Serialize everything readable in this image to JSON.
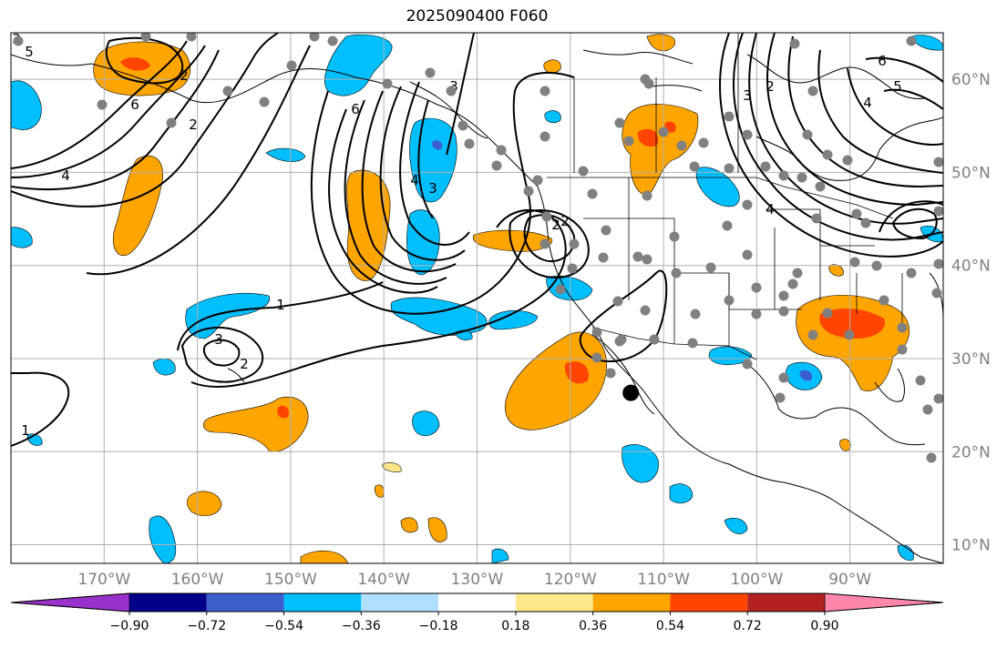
{
  "title": "2025090400 F060",
  "map": {
    "projection": "cylindrical",
    "lon_range": [
      -180,
      -80
    ],
    "lat_range": [
      8,
      65
    ],
    "gridlines": true,
    "coastlines": true,
    "borders": true,
    "lon_labels": [
      "170°W",
      "160°W",
      "150°W",
      "140°W",
      "130°W",
      "120°W",
      "110°W",
      "100°W",
      "90°W"
    ],
    "lat_labels": [
      "60°N",
      "50°N",
      "40°N",
      "30°N",
      "20°N",
      "10°N"
    ],
    "contour_labels": [
      "5",
      "4",
      "3",
      "2",
      "6",
      "2",
      "6",
      "4",
      "3",
      "3",
      "2",
      "1",
      "3",
      "2",
      "1",
      "6",
      "5",
      "4",
      "3",
      "2",
      "4",
      "2"
    ],
    "highlight_marker": {
      "lon": -114,
      "lat": 27,
      "color": "#000000"
    }
  },
  "colorbar": {
    "ticks": [
      "−0.90",
      "−0.72",
      "−0.54",
      "−0.36",
      "−0.18",
      "0.18",
      "0.36",
      "0.54",
      "0.72",
      "0.90"
    ],
    "colors": [
      "#9932cc",
      "#00008b",
      "#3a5fcd",
      "#00bfff",
      "#b0e0ff",
      "#ffffff",
      "#ffe88a",
      "#ffa500",
      "#ff4500",
      "#b22222",
      "#ff88aa"
    ],
    "extend": "both"
  },
  "colors": {
    "gridline": "#b0b0b0",
    "axis_label": "#808080",
    "station": "#808080",
    "contour": "#000000"
  }
}
